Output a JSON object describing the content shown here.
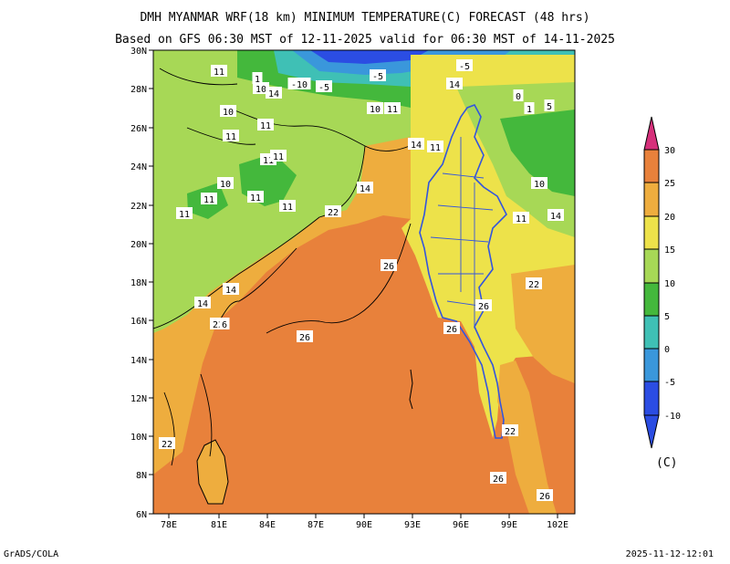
{
  "header": {
    "title": "DMH MYANMAR WRF(18 km) MINIMUM TEMPERATURE(C) FORECAST (48 hrs)",
    "subtitle": "Based on GFS 06:30 MST of 12-11-2025 valid for 06:30 MST of 14-11-2025"
  },
  "axes": {
    "lat_labels": [
      "30N",
      "28N",
      "26N",
      "24N",
      "22N",
      "20N",
      "18N",
      "16N",
      "14N",
      "12N",
      "10N",
      "8N",
      "6N"
    ],
    "lon_labels": [
      "78E",
      "81E",
      "84E",
      "87E",
      "90E",
      "93E",
      "96E",
      "99E",
      "102E"
    ]
  },
  "colorbar": {
    "ticks": [
      "30",
      "25",
      "20",
      "15",
      "10",
      "5",
      "0",
      "-5",
      "-10"
    ],
    "unit": "(C)",
    "colors": [
      "#d6307b",
      "#e8813b",
      "#eead3e",
      "#ede24a",
      "#a7d856",
      "#44b83c",
      "#3fc0b5",
      "#3a97db",
      "#2b4de3"
    ]
  },
  "contour_labels": [
    {
      "text": "11"
    },
    {
      "text": "1"
    },
    {
      "text": "10"
    },
    {
      "text": "14"
    },
    {
      "text": "-10"
    },
    {
      "text": "-5"
    },
    {
      "text": "-5"
    },
    {
      "text": "-5"
    },
    {
      "text": "14"
    },
    {
      "text": "10"
    },
    {
      "text": "11"
    },
    {
      "text": "11"
    },
    {
      "text": "10"
    },
    {
      "text": "11"
    },
    {
      "text": "14"
    },
    {
      "text": "11"
    },
    {
      "text": "11"
    },
    {
      "text": "11"
    },
    {
      "text": "10"
    },
    {
      "text": "11"
    },
    {
      "text": "11"
    },
    {
      "text": "11"
    },
    {
      "text": "14"
    },
    {
      "text": "22"
    },
    {
      "text": "11"
    },
    {
      "text": "14"
    },
    {
      "text": "26"
    },
    {
      "text": "14"
    },
    {
      "text": "22"
    },
    {
      "text": "6"
    },
    {
      "text": "26"
    },
    {
      "text": "26"
    },
    {
      "text": "22"
    },
    {
      "text": "22"
    },
    {
      "text": "26"
    },
    {
      "text": "26"
    },
    {
      "text": "10"
    },
    {
      "text": "14"
    },
    {
      "text": "11"
    },
    {
      "text": "0"
    },
    {
      "text": "5"
    },
    {
      "text": "1"
    },
    {
      "text": "22"
    },
    {
      "text": "26"
    }
  ],
  "footer": {
    "left": "GrADS/COLA",
    "right": "2025-11-12-12:01"
  }
}
